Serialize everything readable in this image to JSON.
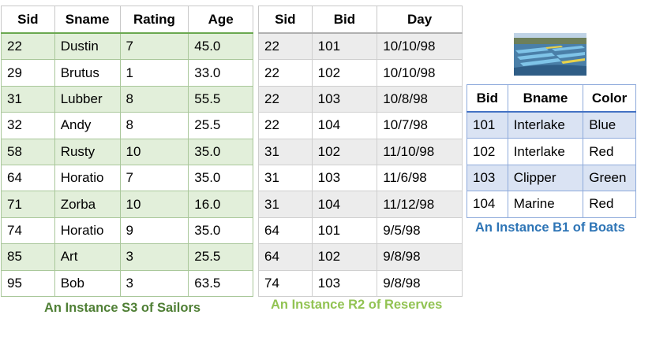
{
  "sailors": {
    "headers": [
      "Sid",
      "Sname",
      "Rating",
      "Age"
    ],
    "rows": [
      [
        "22",
        "Dustin",
        "7",
        "45.0"
      ],
      [
        "29",
        "Brutus",
        "1",
        "33.0"
      ],
      [
        "31",
        "Lubber",
        "8",
        "55.5"
      ],
      [
        "32",
        "Andy",
        "8",
        "25.5"
      ],
      [
        "58",
        "Rusty",
        "10",
        "35.0"
      ],
      [
        "64",
        "Horatio",
        "7",
        "35.0"
      ],
      [
        "71",
        "Zorba",
        "10",
        "16.0"
      ],
      [
        "74",
        "Horatio",
        "9",
        "35.0"
      ],
      [
        "85",
        "Art",
        "3",
        "25.5"
      ],
      [
        "95",
        "Bob",
        "3",
        "63.5"
      ]
    ],
    "caption": "An Instance S3 of Sailors",
    "accent": "#6aa84f"
  },
  "reserves": {
    "headers": [
      "Sid",
      "Bid",
      "Day"
    ],
    "rows": [
      [
        "22",
        "101",
        "10/10/98"
      ],
      [
        "22",
        "102",
        "10/10/98"
      ],
      [
        "22",
        "103",
        "10/8/98"
      ],
      [
        "22",
        "104",
        "10/7/98"
      ],
      [
        "31",
        "102",
        "11/10/98"
      ],
      [
        "31",
        "103",
        "11/6/98"
      ],
      [
        "31",
        "104",
        "11/12/98"
      ],
      [
        "64",
        "101",
        "9/5/98"
      ],
      [
        "64",
        "102",
        "9/8/98"
      ],
      [
        "74",
        "103",
        "9/8/98"
      ]
    ],
    "caption": "An Instance R2 of Reserves",
    "accent": "#92c353"
  },
  "boats": {
    "headers": [
      "Bid",
      "Bname",
      "Color"
    ],
    "rows": [
      [
        "101",
        "Interlake",
        "Blue"
      ],
      [
        "102",
        "Interlake",
        "Red"
      ],
      [
        "103",
        "Clipper",
        "Green"
      ],
      [
        "104",
        "Marine",
        "Red"
      ]
    ],
    "caption": "An Instance B1 of Boats",
    "accent": "#2e75b6"
  }
}
